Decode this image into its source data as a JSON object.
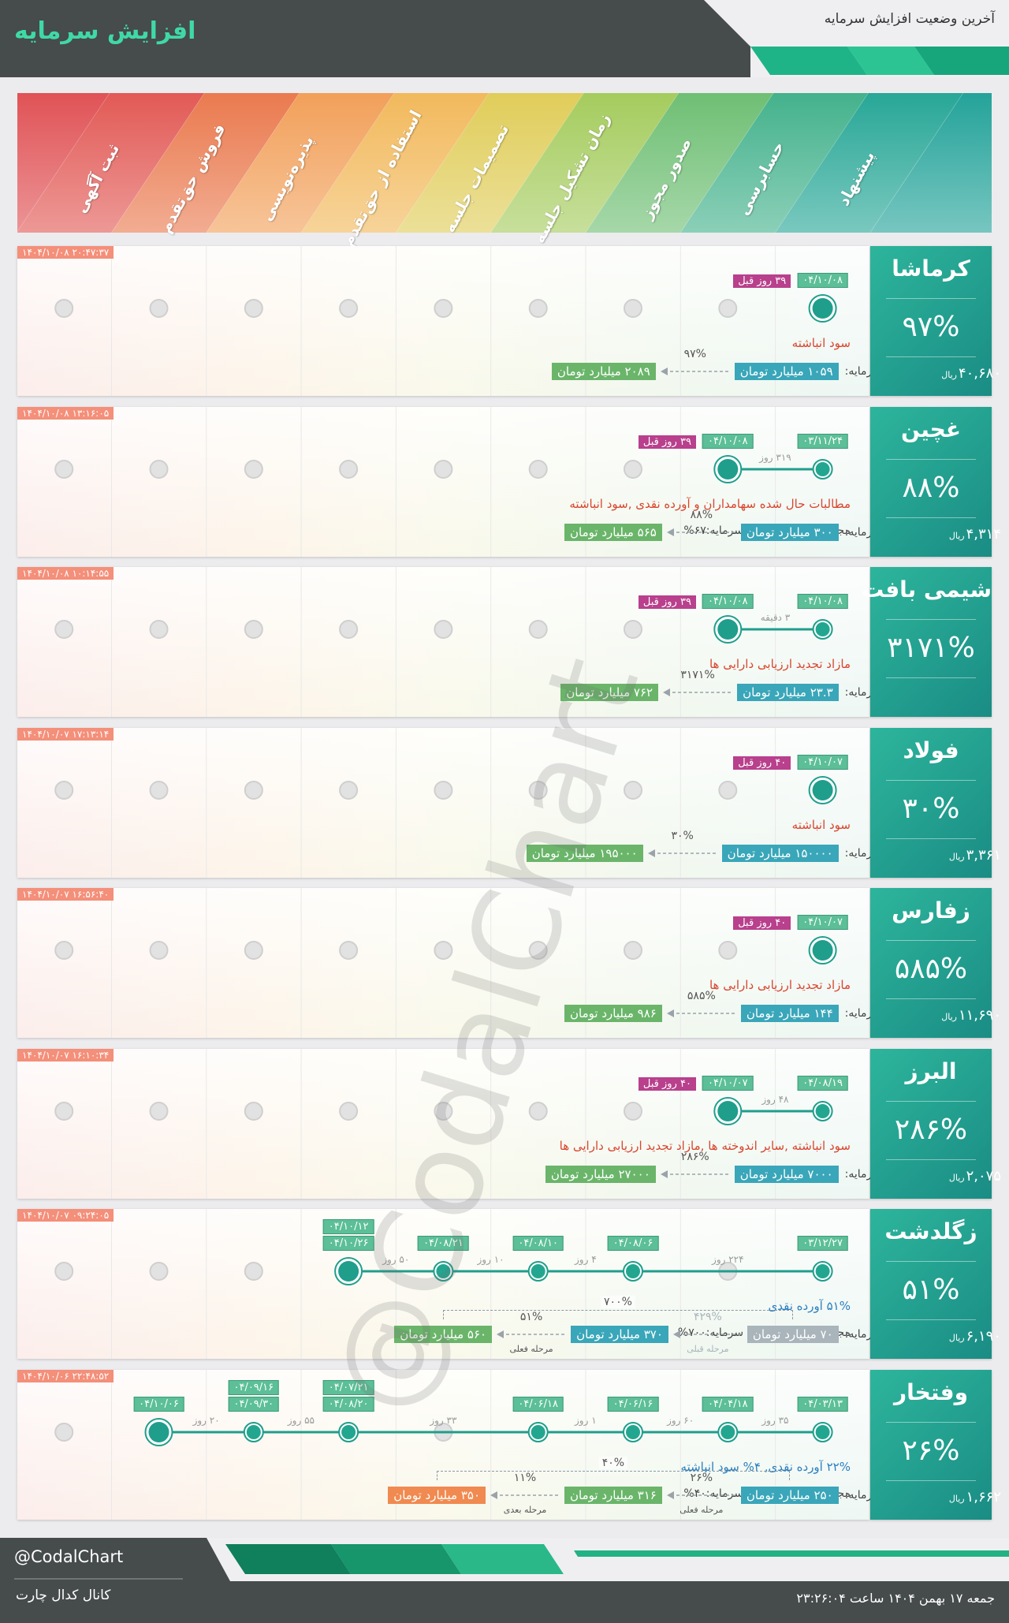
{
  "header": {
    "title": "افزایش سرمایه",
    "subtitle": "آخرین وضعیت افزایش سرمایه"
  },
  "stages": [
    "پیشنهاد",
    "حسابرسی",
    "صدور مجوز",
    "زمان تشکیل جلسه",
    "تصمیمات جلسه",
    "استفاده از حق‌تقدم",
    "پذیره‌نویسی",
    "فروش حق‌تقدم",
    "ثبت آگهی"
  ],
  "labels": {
    "capital": "سرمایه:",
    "price_unit": "ریال"
  },
  "watermark": "@CodalChart",
  "companies": [
    {
      "name": "کرماشا",
      "percent": "۹۷%",
      "price": "۴۰,۶۸۰",
      "timestamp": "۱۴۰۴/۱۰/۰۸ ۲۰:۴۷:۳۷",
      "ago": "۳۹ روز قبل",
      "nodes": [
        {
          "dates": [
            "۰۴/۱۰/۰۸"
          ]
        }
      ],
      "description": "سود انباشته",
      "description_color": "#d9452f",
      "capital": {
        "boxes": [
          {
            "text": "۱۰۵۹ میلیارد تومان",
            "color": "#3aa6b9"
          },
          {
            "text": "۲۰۸۹ میلیارد تومان",
            "color": "#6ab56a"
          }
        ],
        "steps": [
          {
            "percent": "۹۷%"
          }
        ]
      }
    },
    {
      "name": "غچین",
      "percent": "۸۸%",
      "price": "۴,۳۱۴",
      "timestamp": "۱۴۰۴/۱۰/۰۸ ۱۳:۱۶:۰۵",
      "ago": "۳۹ روز قبل",
      "nodes": [
        {
          "dates": [
            "۰۳/۱۱/۲۴"
          ]
        },
        {
          "dates": [
            "۰۴/۱۰/۰۸"
          ],
          "gap": "۳۱۹ روز"
        }
      ],
      "description": "مطالبات حال شده سهامداران و آورده نقدی ,سود انباشته",
      "description_color": "#d9452f",
      "total": "مجموع مراحل افزایش سرمایه:۶۷%",
      "capital": {
        "boxes": [
          {
            "text": "۳۰۰ میلیارد تومان",
            "color": "#3aa6b9"
          },
          {
            "text": "۵۶۵ میلیارد تومان",
            "color": "#6ab56a"
          }
        ],
        "steps": [
          {
            "percent": "۸۸%"
          }
        ]
      }
    },
    {
      "name": "شیمی بافت",
      "percent": "۳۱۷۱%",
      "timestamp": "۱۴۰۴/۱۰/۰۸ ۱۰:۱۴:۵۵",
      "ago": "۳۹ روز قبل",
      "nodes": [
        {
          "dates": [
            "۰۴/۱۰/۰۸"
          ]
        },
        {
          "dates": [
            "۰۴/۱۰/۰۸"
          ],
          "gap": "۳ دقیقه"
        }
      ],
      "description": "مازاد تجدید ارزیابی دارایی ها",
      "description_color": "#d9452f",
      "capital": {
        "boxes": [
          {
            "text": "۲۳.۳ میلیارد تومان",
            "color": "#3aa6b9"
          },
          {
            "text": "۷۶۲ میلیارد تومان",
            "color": "#6ab56a"
          }
        ],
        "steps": [
          {
            "percent": "۳۱۷۱%"
          }
        ]
      }
    },
    {
      "name": "فولاد",
      "percent": "۳۰%",
      "price": "۳,۳۶۱",
      "timestamp": "۱۴۰۴/۱۰/۰۷ ۱۷:۱۳:۱۴",
      "ago": "۴۰ روز قبل",
      "nodes": [
        {
          "dates": [
            "۰۴/۱۰/۰۷"
          ]
        }
      ],
      "description": "سود انباشته",
      "description_color": "#d9452f",
      "capital": {
        "boxes": [
          {
            "text": "۱۵۰۰۰۰ میلیارد تومان",
            "color": "#3aa6b9"
          },
          {
            "text": "۱۹۵۰۰۰ میلیارد تومان",
            "color": "#6ab56a"
          }
        ],
        "steps": [
          {
            "percent": "۳۰%"
          }
        ]
      }
    },
    {
      "name": "زفارس",
      "percent": "۵۸۵%",
      "price": "۱۱,۶۹۰",
      "timestamp": "۱۴۰۴/۱۰/۰۷ ۱۶:۵۶:۴۰",
      "ago": "۴۰ روز قبل",
      "nodes": [
        {
          "dates": [
            "۰۴/۱۰/۰۷"
          ]
        }
      ],
      "description": "مازاد تجدید ارزیابی دارایی ها",
      "description_color": "#d9452f",
      "capital": {
        "boxes": [
          {
            "text": "۱۴۴ میلیارد تومان",
            "color": "#3aa6b9"
          },
          {
            "text": "۹۸۶ میلیارد تومان",
            "color": "#6ab56a"
          }
        ],
        "steps": [
          {
            "percent": "۵۸۵%"
          }
        ]
      }
    },
    {
      "name": "البرز",
      "percent": "۲۸۶%",
      "price": "۲,۰۷۵",
      "timestamp": "۱۴۰۴/۱۰/۰۷ ۱۶:۱۰:۳۴",
      "ago": "۴۰ روز قبل",
      "nodes": [
        {
          "dates": [
            "۰۴/۰۸/۱۹"
          ]
        },
        {
          "dates": [
            "۰۴/۱۰/۰۷"
          ],
          "gap": "۴۸ روز"
        }
      ],
      "description": "سود انباشته ,سایر اندوخته ها ,مازاد تجدید ارزیابی دارایی ها",
      "description_color": "#d9452f",
      "capital": {
        "boxes": [
          {
            "text": "۷۰۰۰ میلیارد تومان",
            "color": "#3aa6b9"
          },
          {
            "text": "۲۷۰۰۰ میلیارد تومان",
            "color": "#6ab56a"
          }
        ],
        "steps": [
          {
            "percent": "۲۸۶%"
          }
        ]
      }
    },
    {
      "name": "زگلدشت",
      "percent": "۵۱%",
      "price": "۶,۱۹۰",
      "timestamp": "۱۴۰۴/۱۰/۰۷ ۰۹:۲۴:۰۵",
      "nodes": [
        {
          "dates": [
            "۰۳/۱۲/۲۷"
          ]
        },
        {
          "dates": [
            "۰۴/۰۸/۰۶"
          ],
          "gap": "۲۲۴ روز"
        },
        {
          "dates": [
            "۰۴/۰۸/۱۰"
          ],
          "gap": "۴ روز"
        },
        {
          "dates": [
            "۰۴/۰۸/۲۱"
          ],
          "gap": "۱۰ روز"
        },
        {
          "dates": [
            "۰۴/۱۰/۱۲",
            "۰۴/۱۰/۲۶"
          ],
          "gap": "۵۰ روز"
        }
      ],
      "description": "۵۱% آورده نقدی",
      "description_color": "#2a7fc0",
      "total": "مجموع مراحل افزایش سرمایه:۷۰۰%",
      "capital": {
        "boxes": [
          {
            "text": "۷۰ میلیارد تومان",
            "color": "#a9b4bb"
          },
          {
            "text": "۳۷۰ میلیارد تومان",
            "color": "#3aa6b9"
          },
          {
            "text": "۵۶۰ میلیارد تومان",
            "color": "#6ab56a"
          }
        ],
        "steps": [
          {
            "percent": "۴۲۹%",
            "label": "مرحله قبلی"
          },
          {
            "percent": "۵۱%",
            "label": "مرحله فعلی"
          }
        ],
        "overall": "۷۰۰%"
      }
    },
    {
      "name": "وفتخار",
      "percent": "۲۶%",
      "price": "۱,۶۶۲",
      "timestamp": "۱۴۰۴/۱۰/۰۶ ۲۲:۴۸:۵۲",
      "nodes": [
        {
          "dates": [
            "۰۴/۰۳/۱۳"
          ]
        },
        {
          "dates": [
            "۰۴/۰۴/۱۸"
          ],
          "gap": "۳۵ روز"
        },
        {
          "dates": [
            "۰۴/۰۶/۱۶"
          ],
          "gap": "۶۰ روز"
        },
        {
          "dates": [
            "۰۴/۰۶/۱۸"
          ],
          "gap": "۱ روز"
        },
        {
          "dates": [
            "۰۴/۰۷/۲۱",
            "۰۴/۰۸/۲۰"
          ],
          "gap": "۳۳ روز"
        },
        {
          "dates": [
            "۰۴/۰۹/۱۶",
            "۰۴/۰۹/۳۰"
          ],
          "gap": "۵۵ روز"
        },
        {
          "dates": [
            "۰۴/۱۰/۰۶"
          ],
          "gap": "۲۰ روز"
        }
      ],
      "description": "۲۲% آورده نقدی, ۴% سود انباشته",
      "description_color": "#2a7fc0",
      "total": "مجموع مراحل افزایش سرمایه:۴۰%",
      "capital": {
        "boxes": [
          {
            "text": "۲۵۰ میلیارد تومان",
            "color": "#3aa6b9"
          },
          {
            "text": "۳۱۶ میلیارد تومان",
            "color": "#6ab56a"
          },
          {
            "text": "۳۵۰ میلیارد تومان",
            "color": "#f08a50"
          }
        ],
        "steps": [
          {
            "percent": "۲۶%",
            "label": "مرحله فعلی"
          },
          {
            "percent": "۱۱%",
            "label": "مرحله بعدی"
          }
        ],
        "overall": "۴۰%"
      }
    }
  ],
  "footer": {
    "handle": "@CodalChart",
    "channel": "کانال کدال چارت",
    "date": "جمعه ۱۷ بهمن ۱۴۰۴ ساعت ۲۳:۲۶:۰۴"
  }
}
